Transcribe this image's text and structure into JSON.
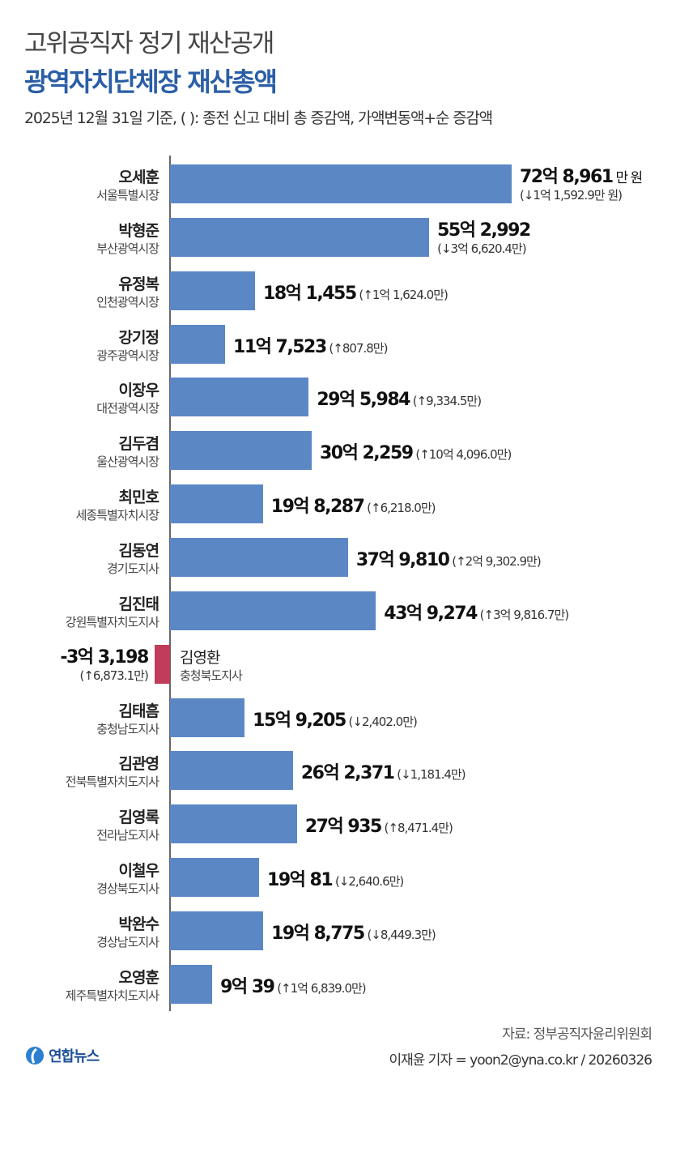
{
  "header": {
    "supertitle": "고위공직자 정기 재산공개",
    "title": "광역자치단체장 재산총액",
    "subtitle": "2025년 12월 31일 기준, (  ): 종전 신고 대비 총 증감액, 가액변동액+순 증감액"
  },
  "colors": {
    "positive_bar": "#5b87c5",
    "negative_bar": "#bf3c5a",
    "title": "#2a5ea6"
  },
  "chart_data": {
    "type": "bar",
    "orientation": "horizontal",
    "unit": "만 원",
    "unit_label": "만 원",
    "categories": [
      {
        "name": "오세훈",
        "region": "서울특별시장"
      },
      {
        "name": "박형준",
        "region": "부산광역시장"
      },
      {
        "name": "유정복",
        "region": "인천광역시장"
      },
      {
        "name": "강기정",
        "region": "광주광역시장"
      },
      {
        "name": "이장우",
        "region": "대전광역시장"
      },
      {
        "name": "김두겸",
        "region": "울산광역시장"
      },
      {
        "name": "최민호",
        "region": "세종특별자치시장"
      },
      {
        "name": "김동연",
        "region": "경기도지사"
      },
      {
        "name": "김진태",
        "region": "강원특별자치도지사"
      },
      {
        "name": "김영환",
        "region": "충청북도지사"
      },
      {
        "name": "김태흠",
        "region": "충청남도지사"
      },
      {
        "name": "김관영",
        "region": "전북특별자치도지사"
      },
      {
        "name": "김영록",
        "region": "전라남도지사"
      },
      {
        "name": "이철우",
        "region": "경상북도지사"
      },
      {
        "name": "박완수",
        "region": "경상남도지사"
      },
      {
        "name": "오영훈",
        "region": "제주특별자치도지사"
      }
    ],
    "values": [
      728961,
      552992,
      181455,
      117523,
      295984,
      302259,
      198287,
      379810,
      439274,
      -33198,
      159205,
      262371,
      270935,
      190081,
      198775,
      90039
    ],
    "value_labels": [
      "72억 8,961",
      "55억 2,992",
      "18억 1,455",
      "11억 7,523",
      "29억 5,984",
      "30억 2,259",
      "19억 8,287",
      "37억 9,810",
      "43억 9,274",
      "-3억 3,198",
      "15억 9,205",
      "26억 2,371",
      "27억 935",
      "19억 81",
      "19억 8,775",
      "9억 39"
    ],
    "change_labels": [
      "(↓1억 1,592.9만 원)",
      "(↓3억 6,620.4만)",
      "(↑1억 1,624.0만)",
      "(↑807.8만)",
      "(↑9,334.5만)",
      "(↑10억 4,096.0만)",
      "(↑6,218.0만)",
      "(↑2억 9,302.9만)",
      "(↑3억 9,816.7만)",
      "(↑6,873.1만)",
      "(↓2,402.0만)",
      "(↓1,181.4만)",
      "(↑8,471.4만)",
      "(↓2,640.6만)",
      "(↓8,449.3만)",
      "(↑1억 6,839.0만)"
    ],
    "changes": [
      -11592.9,
      -36620.4,
      11624.0,
      807.8,
      9334.5,
      104096.0,
      6218.0,
      29302.9,
      39816.7,
      6873.1,
      -2402.0,
      -1181.4,
      8471.4,
      -2640.6,
      -8449.3,
      16839.0
    ],
    "grid": false
  },
  "footer": {
    "source": "자료: 정부공직자윤리위원회",
    "credit": "이재윤 기자 = yoon2@yna.co.kr / 20260326",
    "logo_text": "연합뉴스"
  }
}
